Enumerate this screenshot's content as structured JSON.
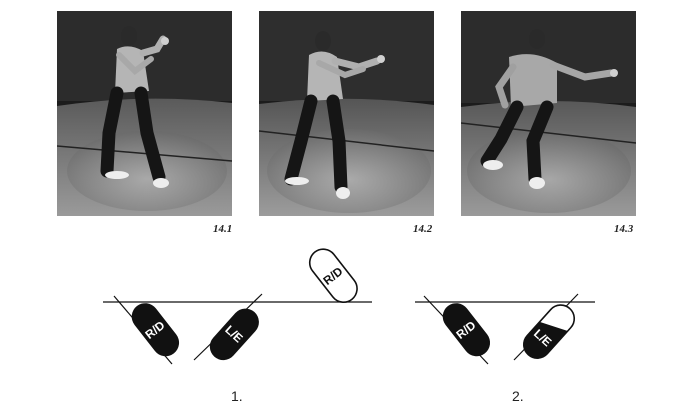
{
  "photos": [
    {
      "caption": "14.1"
    },
    {
      "caption": "14.2"
    },
    {
      "caption": "14.3"
    }
  ],
  "diagrams": [
    {
      "number": "1.",
      "footprints": [
        {
          "label": "R/D"
        },
        {
          "label": "L/E"
        },
        {
          "label": "R/D"
        }
      ]
    },
    {
      "number": "2.",
      "footprints": [
        {
          "label": "R/D"
        },
        {
          "label": "L/E"
        }
      ]
    }
  ],
  "colors": {
    "photo_dark": "#1f1f1f",
    "photo_wall": "#3a3a3a",
    "photo_floor": "#8c8c8c",
    "ink": "#111111"
  }
}
